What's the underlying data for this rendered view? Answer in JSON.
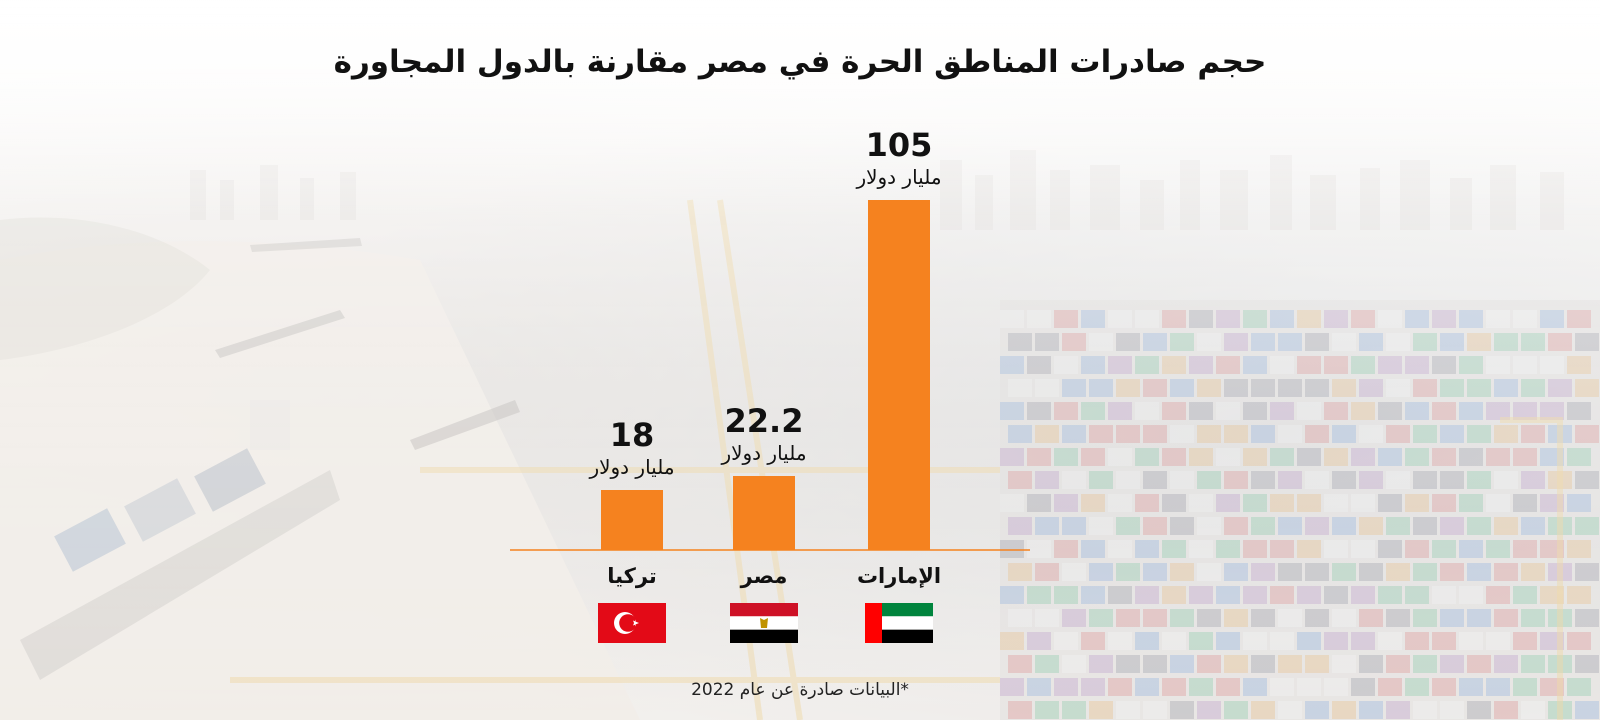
{
  "title": "حجم صادرات المناطق الحرة في مصر مقارنة بالدول المجاورة",
  "footnote": "*البيانات صادرة عن عام 2022",
  "colors": {
    "bar": "#f5821f",
    "axis": "#f5821f",
    "text": "#111111"
  },
  "chart_data": {
    "type": "bar",
    "title": "حجم صادرات المناطق الحرة في مصر مقارنة بالدول المجاورة",
    "unit": "مليار دولار",
    "categories": [
      "تركيا",
      "مصر",
      "الإمارات"
    ],
    "values": [
      18,
      22.2,
      105
    ],
    "value_labels": [
      "18",
      "22.2",
      "105"
    ],
    "flags": [
      "turkey-flag",
      "egypt-flag",
      "uae-flag"
    ],
    "ylim": [
      0,
      105
    ],
    "xlabel": "",
    "ylabel": ""
  }
}
